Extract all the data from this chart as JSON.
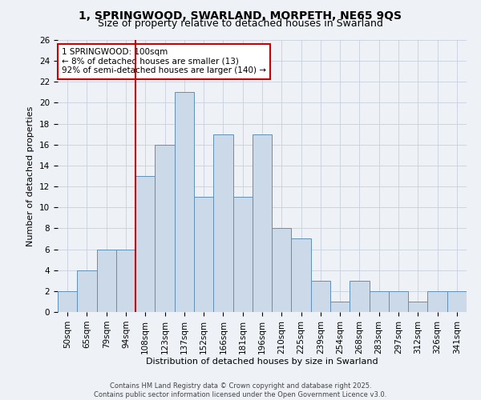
{
  "title_line1": "1, SPRINGWOOD, SWARLAND, MORPETH, NE65 9QS",
  "title_line2": "Size of property relative to detached houses in Swarland",
  "xlabel": "Distribution of detached houses by size in Swarland",
  "ylabel": "Number of detached properties",
  "categories": [
    "50sqm",
    "65sqm",
    "79sqm",
    "94sqm",
    "108sqm",
    "123sqm",
    "137sqm",
    "152sqm",
    "166sqm",
    "181sqm",
    "196sqm",
    "210sqm",
    "225sqm",
    "239sqm",
    "254sqm",
    "268sqm",
    "283sqm",
    "297sqm",
    "312sqm",
    "326sqm",
    "341sqm"
  ],
  "values": [
    2,
    4,
    6,
    6,
    13,
    16,
    21,
    11,
    17,
    11,
    17,
    8,
    7,
    3,
    1,
    3,
    2,
    2,
    1,
    2,
    2
  ],
  "bar_color": "#ccd9e8",
  "bar_edge_color": "#6090b8",
  "grid_color": "#c8d0dc",
  "vline_x": 3.5,
  "vline_color": "#cc0000",
  "annotation_text": "1 SPRINGWOOD: 100sqm\n← 8% of detached houses are smaller (13)\n92% of semi-detached houses are larger (140) →",
  "annotation_box_color": "#ffffff",
  "annotation_box_edge": "#cc0000",
  "ylim": [
    0,
    26
  ],
  "yticks": [
    0,
    2,
    4,
    6,
    8,
    10,
    12,
    14,
    16,
    18,
    20,
    22,
    24,
    26
  ],
  "footer_line1": "Contains HM Land Registry data © Crown copyright and database right 2025.",
  "footer_line2": "Contains public sector information licensed under the Open Government Licence v3.0.",
  "background_color": "#eef2f7",
  "title_fontsize": 10,
  "subtitle_fontsize": 9,
  "ylabel_fontsize": 8,
  "xlabel_fontsize": 8,
  "tick_fontsize": 7.5,
  "footer_fontsize": 6,
  "annotation_fontsize": 7.5
}
